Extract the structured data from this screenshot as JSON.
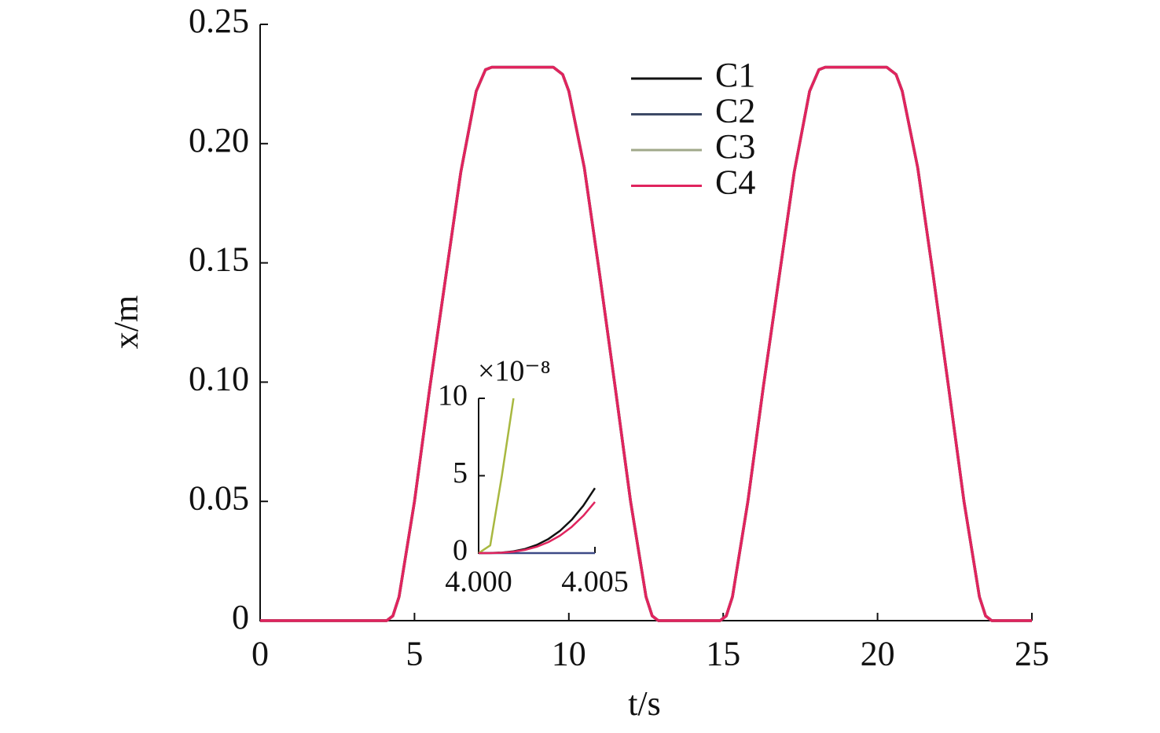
{
  "chart_data": [
    {
      "type": "line",
      "xlabel": "t/s",
      "ylabel": "x/m",
      "x": [
        0,
        4.1,
        4.3,
        4.5,
        5,
        5.5,
        6,
        6.5,
        7,
        7.3,
        7.5,
        9.5,
        9.8,
        10,
        10.5,
        11,
        11.5,
        12,
        12.5,
        12.7,
        12.9,
        14.9,
        15.1,
        15.3,
        15.8,
        16.3,
        16.8,
        17.3,
        17.8,
        18.1,
        18.3,
        20.3,
        20.6,
        20.8,
        21.3,
        21.8,
        22.3,
        22.8,
        23.3,
        23.5,
        23.7,
        25
      ],
      "series": [
        {
          "name": "C1",
          "color": "#111111",
          "values": [
            0,
            0,
            0.002,
            0.01,
            0.05,
            0.098,
            0.143,
            0.188,
            0.222,
            0.231,
            0.232,
            0.232,
            0.229,
            0.222,
            0.19,
            0.145,
            0.098,
            0.05,
            0.01,
            0.002,
            0,
            0,
            0.002,
            0.01,
            0.05,
            0.098,
            0.143,
            0.188,
            0.222,
            0.231,
            0.232,
            0.232,
            0.229,
            0.222,
            0.19,
            0.145,
            0.098,
            0.05,
            0.01,
            0.002,
            0,
            0
          ]
        },
        {
          "name": "C2",
          "color": "#3d4a66",
          "values": [
            0,
            0,
            0.002,
            0.01,
            0.05,
            0.098,
            0.143,
            0.188,
            0.222,
            0.231,
            0.232,
            0.232,
            0.229,
            0.222,
            0.19,
            0.145,
            0.098,
            0.05,
            0.01,
            0.002,
            0,
            0,
            0.002,
            0.01,
            0.05,
            0.098,
            0.143,
            0.188,
            0.222,
            0.231,
            0.232,
            0.232,
            0.229,
            0.222,
            0.19,
            0.145,
            0.098,
            0.05,
            0.01,
            0.002,
            0,
            0
          ]
        },
        {
          "name": "C3",
          "color": "#a0a88a",
          "values": [
            0,
            0,
            0.002,
            0.01,
            0.05,
            0.098,
            0.143,
            0.188,
            0.222,
            0.231,
            0.232,
            0.232,
            0.229,
            0.222,
            0.19,
            0.145,
            0.098,
            0.05,
            0.01,
            0.002,
            0,
            0,
            0.002,
            0.01,
            0.05,
            0.098,
            0.143,
            0.188,
            0.222,
            0.231,
            0.232,
            0.232,
            0.229,
            0.222,
            0.19,
            0.145,
            0.098,
            0.05,
            0.01,
            0.002,
            0,
            0
          ]
        },
        {
          "name": "C4",
          "color": "#e0245e",
          "values": [
            0,
            0,
            0.002,
            0.01,
            0.05,
            0.098,
            0.143,
            0.188,
            0.222,
            0.231,
            0.232,
            0.232,
            0.229,
            0.222,
            0.19,
            0.145,
            0.098,
            0.05,
            0.01,
            0.002,
            0,
            0,
            0.002,
            0.01,
            0.05,
            0.098,
            0.143,
            0.188,
            0.222,
            0.231,
            0.232,
            0.232,
            0.229,
            0.222,
            0.19,
            0.145,
            0.098,
            0.05,
            0.01,
            0.002,
            0,
            0
          ]
        }
      ],
      "xlim": [
        0,
        25
      ],
      "xticks": [
        0,
        5,
        10,
        15,
        20,
        25
      ],
      "ylim": [
        0,
        0.25
      ],
      "yticks": [
        0,
        0.05,
        {
          "value": 0.1,
          "label": "0.10"
        },
        0.15,
        {
          "value": 0.2,
          "label": "0.20"
        },
        0.25
      ],
      "legend": "upper-center"
    },
    {
      "type": "line",
      "annotation": "×10⁻⁸",
      "x": [
        4.0,
        4.0005,
        4.001,
        4.0015,
        4.002,
        4.0025,
        4.003,
        4.0035,
        4.004,
        4.0045,
        4.005
      ],
      "series": [
        {
          "name": "C1",
          "color": "#111111",
          "values": [
            0,
            0.004,
            0.034,
            0.113,
            0.27,
            0.53,
            0.91,
            1.44,
            2.15,
            3.06,
            4.2
          ]
        },
        {
          "name": "C2",
          "color": "#3d4a86",
          "values": [
            0,
            0,
            0,
            0,
            0,
            0,
            0,
            0,
            0,
            0,
            0
          ]
        },
        {
          "name": "C3",
          "color": "#a8b840",
          "values": [
            0,
            0.5,
            5,
            10,
            null,
            null,
            null,
            null,
            null,
            null,
            null
          ]
        },
        {
          "name": "C4",
          "color": "#e0245e",
          "values": [
            0,
            0.003,
            0.026,
            0.089,
            0.21,
            0.41,
            0.71,
            1.13,
            1.69,
            2.41,
            3.3
          ]
        }
      ],
      "xlim": [
        4.0,
        4.005
      ],
      "xticks": [
        {
          "value": 4.0,
          "label": "4.000"
        },
        {
          "value": 4.005,
          "label": "4.005"
        }
      ],
      "ylim": [
        0,
        10
      ],
      "yticks": [
        0,
        5,
        10
      ]
    }
  ]
}
